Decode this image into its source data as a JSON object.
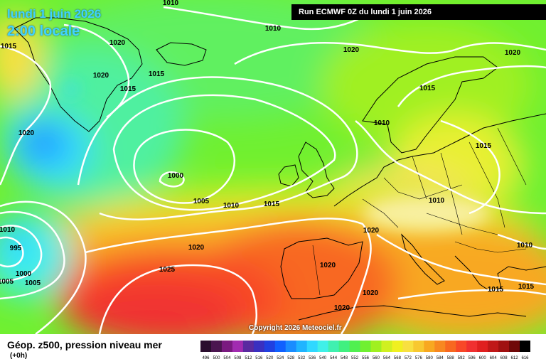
{
  "header": {
    "date": "lundi 1 juin 2026",
    "local_time": "2:00 locale",
    "run_info": "Run ECMWF 0Z du lundi 1 juin 2026"
  },
  "copyright": "Copyright 2026 Meteociel.fr",
  "footer": {
    "title": "Géop. z500, pression niveau mer",
    "forecast_offset": "(+0h)"
  },
  "legend": {
    "ticks": [
      "496",
      "500",
      "504",
      "508",
      "512",
      "516",
      "520",
      "524",
      "528",
      "532",
      "536",
      "540",
      "544",
      "548",
      "552",
      "556",
      "560",
      "564",
      "568",
      "572",
      "576",
      "580",
      "584",
      "588",
      "592",
      "596",
      "600",
      "604",
      "608",
      "612",
      "616"
    ],
    "colors": [
      "#2a0d2e",
      "#4b1550",
      "#7a1a80",
      "#a12bb0",
      "#5a2aa0",
      "#3a30c0",
      "#2040e0",
      "#1060ff",
      "#1a8cff",
      "#20b4ff",
      "#30d8ff",
      "#40f0e8",
      "#40f0b0",
      "#40f080",
      "#50f050",
      "#70f030",
      "#a0f020",
      "#d0f020",
      "#f0f020",
      "#f8e040",
      "#f8c830",
      "#f8a820",
      "#f88820",
      "#f86820",
      "#f84828",
      "#f03030",
      "#e02020",
      "#c01818",
      "#a01010",
      "#700808",
      "#000000"
    ]
  },
  "isobar_labels": [
    "1010",
    "1010",
    "1015",
    "1020",
    "1020",
    "1020",
    "1020",
    "1015",
    "1015",
    "1015",
    "1020",
    "1010",
    "1015",
    "1000",
    "1005",
    "1010",
    "1015",
    "1010",
    "1010",
    "995",
    "1000",
    "1005",
    "1020",
    "1025",
    "1020",
    "1020",
    "1020",
    "1020",
    "1015",
    "1015",
    "1010",
    "1005"
  ],
  "map": {
    "colors": {
      "land_border": "#000000",
      "isobar": "#ffffff"
    }
  }
}
